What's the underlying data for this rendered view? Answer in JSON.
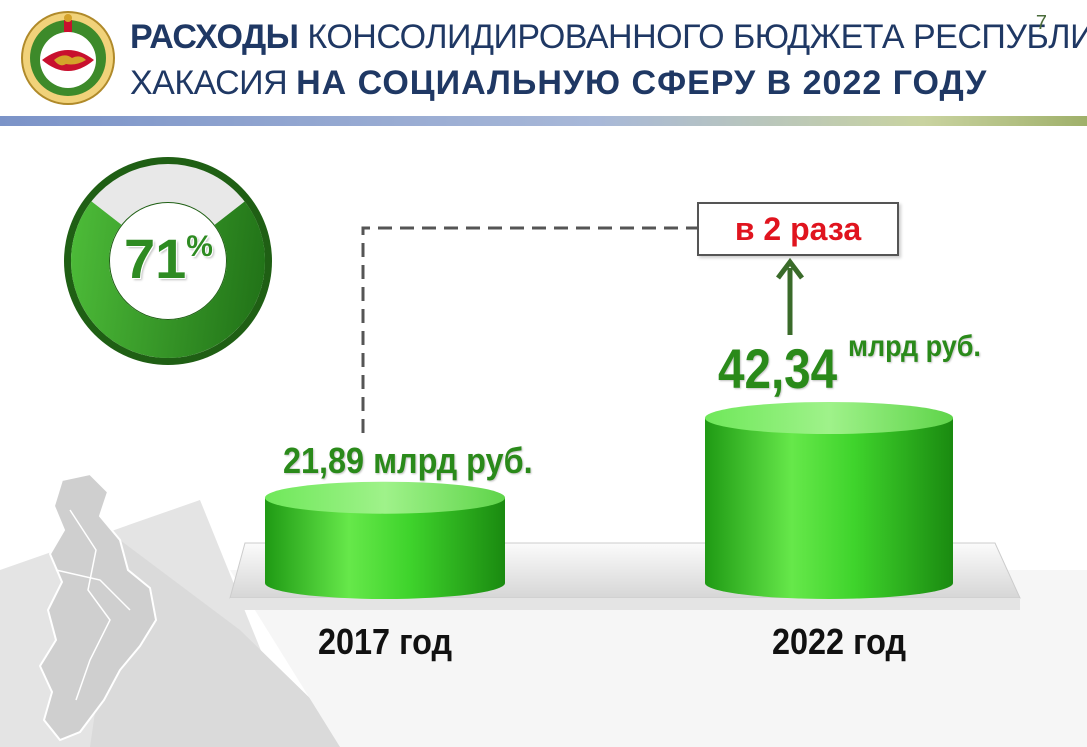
{
  "header": {
    "title_line1_bold": "РАСХОДЫ",
    "title_line1_rest": " КОНСОЛИДИРОВАННОГО БЮДЖЕТА РЕСПУБЛИКИ",
    "title_line2_normal": "ХАКАСИЯ ",
    "title_line2_bold": "НА СОЦИАЛЬНУЮ СФЕРУ В 2022 ГОДУ",
    "page_number": "7",
    "emblem_icon": "khakassia-coat-of-arms-icon"
  },
  "donut": {
    "value_text": "71",
    "percent_sign": "%",
    "share": 0.71,
    "colors": {
      "filled": "#2e8b22",
      "remainder": "#e8e8e8"
    }
  },
  "chart_data": {
    "type": "bar",
    "categories": [
      "2017 год",
      "2022 год"
    ],
    "values": [
      21.89,
      42.34
    ],
    "value_labels": [
      "21,89 млрд руб.",
      "42,34"
    ],
    "value_unit_2022": "млрд руб.",
    "annotation": "в 2 раза",
    "ylim": [
      0,
      45
    ],
    "grid": false,
    "legend": "none",
    "colors": {
      "bar": "#33cc22",
      "annotation_text": "#e0141e",
      "labels": "#2a8a1a"
    }
  },
  "decor": {
    "map_icon": "khakassia-map-icon"
  }
}
